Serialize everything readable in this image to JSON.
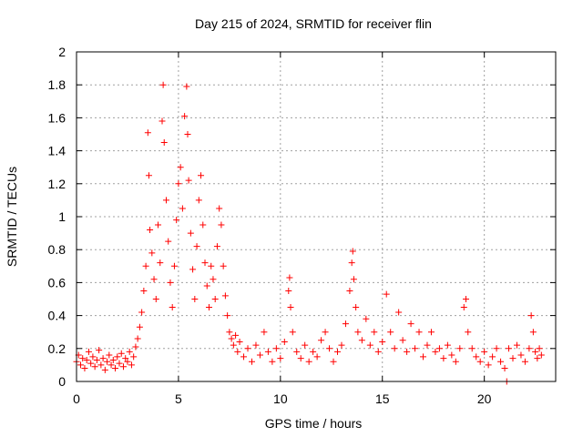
{
  "chart_data": {
    "type": "scatter",
    "title": "Day 215 of 2024, SRMTID for receiver flin",
    "xlabel": "GPS time / hours",
    "ylabel": "SRMTID / TECUs",
    "xlim": [
      0,
      23.5
    ],
    "ylim": [
      0,
      2
    ],
    "xticks": [
      0,
      5,
      10,
      15,
      20
    ],
    "yticks": [
      0,
      0.2,
      0.4,
      0.6,
      0.8,
      1,
      1.2,
      1.4,
      1.6,
      1.8,
      2
    ],
    "xtick_labels": [
      "0",
      "5",
      "10",
      "15",
      "20"
    ],
    "ytick_labels": [
      "0",
      "0.2",
      "0.4",
      "0.6",
      "0.8",
      "1",
      "1.2",
      "1.4",
      "1.6",
      "1.8",
      "2"
    ],
    "grid": true,
    "marker": "plus",
    "marker_color": "#ff0000",
    "series": [
      {
        "name": "SRMTID",
        "points": [
          [
            0.0,
            0.12
          ],
          [
            0.1,
            0.16
          ],
          [
            0.2,
            0.1
          ],
          [
            0.3,
            0.14
          ],
          [
            0.4,
            0.08
          ],
          [
            0.5,
            0.13
          ],
          [
            0.6,
            0.18
          ],
          [
            0.7,
            0.11
          ],
          [
            0.8,
            0.15
          ],
          [
            0.9,
            0.09
          ],
          [
            1.0,
            0.13
          ],
          [
            1.1,
            0.19
          ],
          [
            1.2,
            0.1
          ],
          [
            1.3,
            0.14
          ],
          [
            1.4,
            0.07
          ],
          [
            1.5,
            0.12
          ],
          [
            1.6,
            0.16
          ],
          [
            1.7,
            0.1
          ],
          [
            1.8,
            0.13
          ],
          [
            1.9,
            0.08
          ],
          [
            2.0,
            0.15
          ],
          [
            2.1,
            0.11
          ],
          [
            2.2,
            0.17
          ],
          [
            2.3,
            0.09
          ],
          [
            2.4,
            0.14
          ],
          [
            2.5,
            0.12
          ],
          [
            2.6,
            0.18
          ],
          [
            2.7,
            0.1
          ],
          [
            2.8,
            0.15
          ],
          [
            2.9,
            0.21
          ],
          [
            3.0,
            0.26
          ],
          [
            3.1,
            0.33
          ],
          [
            3.2,
            0.42
          ],
          [
            3.3,
            0.55
          ],
          [
            3.4,
            0.7
          ],
          [
            3.5,
            1.51
          ],
          [
            3.55,
            1.25
          ],
          [
            3.6,
            0.92
          ],
          [
            3.7,
            0.78
          ],
          [
            3.8,
            0.62
          ],
          [
            3.9,
            0.5
          ],
          [
            4.0,
            0.95
          ],
          [
            4.1,
            0.72
          ],
          [
            4.2,
            1.58
          ],
          [
            4.25,
            1.8
          ],
          [
            4.3,
            1.45
          ],
          [
            4.4,
            1.1
          ],
          [
            4.5,
            0.85
          ],
          [
            4.6,
            0.6
          ],
          [
            4.7,
            0.45
          ],
          [
            4.8,
            0.7
          ],
          [
            4.9,
            0.98
          ],
          [
            5.0,
            1.2
          ],
          [
            5.1,
            1.3
          ],
          [
            5.2,
            1.05
          ],
          [
            5.3,
            1.61
          ],
          [
            5.4,
            1.79
          ],
          [
            5.45,
            1.5
          ],
          [
            5.5,
            1.22
          ],
          [
            5.6,
            0.9
          ],
          [
            5.7,
            0.68
          ],
          [
            5.8,
            0.5
          ],
          [
            5.9,
            0.82
          ],
          [
            6.0,
            1.1
          ],
          [
            6.1,
            1.25
          ],
          [
            6.2,
            0.95
          ],
          [
            6.3,
            0.72
          ],
          [
            6.4,
            0.58
          ],
          [
            6.5,
            0.45
          ],
          [
            6.6,
            0.7
          ],
          [
            6.7,
            0.62
          ],
          [
            6.8,
            0.5
          ],
          [
            6.9,
            0.82
          ],
          [
            7.0,
            1.05
          ],
          [
            7.1,
            0.95
          ],
          [
            7.2,
            0.7
          ],
          [
            7.3,
            0.52
          ],
          [
            7.4,
            0.4
          ],
          [
            7.5,
            0.3
          ],
          [
            7.6,
            0.26
          ],
          [
            7.7,
            0.22
          ],
          [
            7.8,
            0.28
          ],
          [
            7.9,
            0.18
          ],
          [
            8.0,
            0.24
          ],
          [
            8.2,
            0.15
          ],
          [
            8.4,
            0.2
          ],
          [
            8.6,
            0.12
          ],
          [
            8.8,
            0.22
          ],
          [
            9.0,
            0.16
          ],
          [
            9.2,
            0.3
          ],
          [
            9.4,
            0.18
          ],
          [
            9.6,
            0.12
          ],
          [
            9.8,
            0.2
          ],
          [
            10.0,
            0.14
          ],
          [
            10.2,
            0.24
          ],
          [
            10.4,
            0.55
          ],
          [
            10.45,
            0.63
          ],
          [
            10.5,
            0.45
          ],
          [
            10.6,
            0.3
          ],
          [
            10.8,
            0.18
          ],
          [
            11.0,
            0.14
          ],
          [
            11.2,
            0.22
          ],
          [
            11.4,
            0.12
          ],
          [
            11.6,
            0.18
          ],
          [
            11.8,
            0.15
          ],
          [
            12.0,
            0.25
          ],
          [
            12.2,
            0.3
          ],
          [
            12.4,
            0.2
          ],
          [
            12.6,
            0.12
          ],
          [
            12.8,
            0.18
          ],
          [
            13.0,
            0.22
          ],
          [
            13.2,
            0.35
          ],
          [
            13.4,
            0.55
          ],
          [
            13.5,
            0.72
          ],
          [
            13.55,
            0.79
          ],
          [
            13.6,
            0.62
          ],
          [
            13.7,
            0.45
          ],
          [
            13.8,
            0.3
          ],
          [
            14.0,
            0.25
          ],
          [
            14.2,
            0.38
          ],
          [
            14.4,
            0.22
          ],
          [
            14.6,
            0.3
          ],
          [
            14.8,
            0.18
          ],
          [
            15.0,
            0.24
          ],
          [
            15.2,
            0.53
          ],
          [
            15.4,
            0.3
          ],
          [
            15.6,
            0.2
          ],
          [
            15.8,
            0.42
          ],
          [
            16.0,
            0.25
          ],
          [
            16.2,
            0.18
          ],
          [
            16.4,
            0.35
          ],
          [
            16.6,
            0.2
          ],
          [
            16.8,
            0.3
          ],
          [
            17.0,
            0.15
          ],
          [
            17.2,
            0.22
          ],
          [
            17.4,
            0.3
          ],
          [
            17.6,
            0.18
          ],
          [
            17.8,
            0.2
          ],
          [
            18.0,
            0.14
          ],
          [
            18.2,
            0.22
          ],
          [
            18.4,
            0.16
          ],
          [
            18.6,
            0.12
          ],
          [
            18.8,
            0.2
          ],
          [
            19.0,
            0.45
          ],
          [
            19.1,
            0.5
          ],
          [
            19.2,
            0.3
          ],
          [
            19.4,
            0.2
          ],
          [
            19.6,
            0.15
          ],
          [
            19.8,
            0.12
          ],
          [
            20.0,
            0.18
          ],
          [
            20.2,
            0.1
          ],
          [
            20.4,
            0.15
          ],
          [
            20.6,
            0.2
          ],
          [
            20.8,
            0.12
          ],
          [
            21.0,
            0.08
          ],
          [
            21.1,
            0.0
          ],
          [
            21.2,
            0.2
          ],
          [
            21.4,
            0.14
          ],
          [
            21.6,
            0.22
          ],
          [
            21.8,
            0.16
          ],
          [
            22.0,
            0.12
          ],
          [
            22.2,
            0.2
          ],
          [
            22.3,
            0.4
          ],
          [
            22.4,
            0.3
          ],
          [
            22.5,
            0.18
          ],
          [
            22.6,
            0.14
          ],
          [
            22.7,
            0.2
          ],
          [
            22.8,
            0.16
          ]
        ]
      }
    ]
  }
}
